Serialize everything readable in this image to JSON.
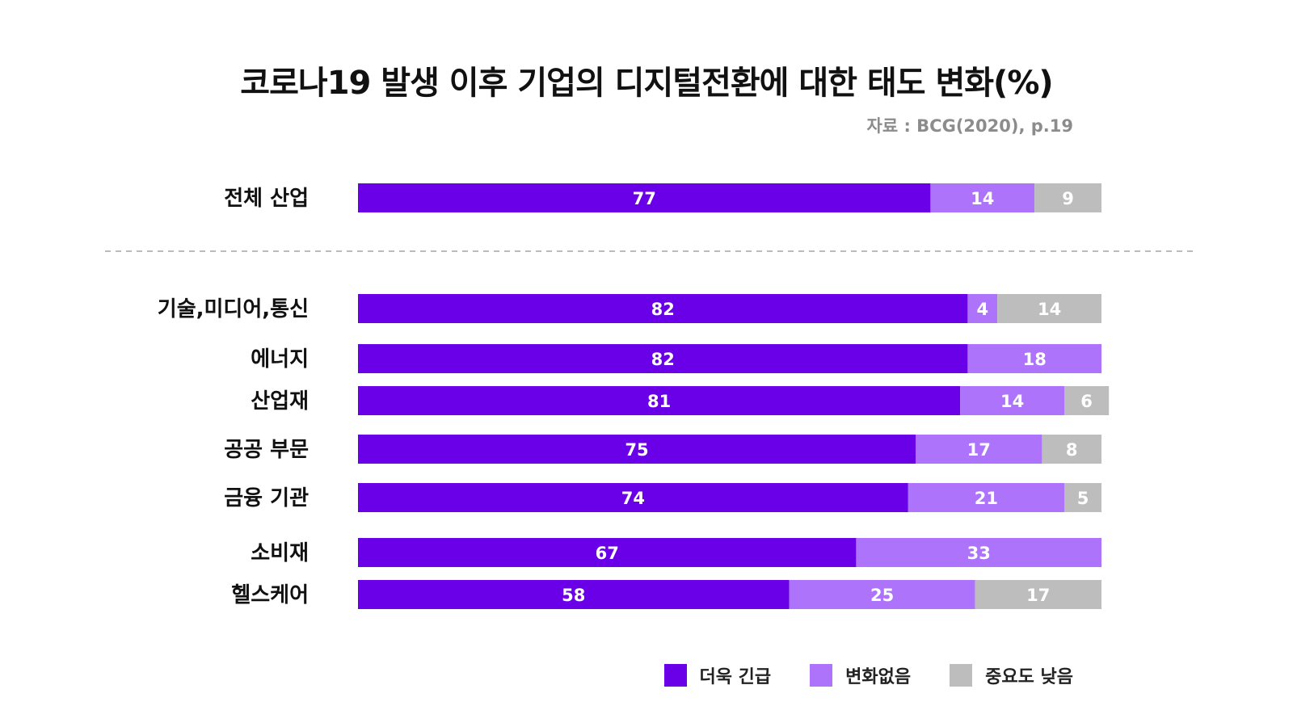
{
  "title": "코로나19 발생 이후 기업의 디지털전환에 대한 태도 변화(%)",
  "source": "자료 : BCG(2020), p.19",
  "colors": {
    "more_urgent": "#6a00e8",
    "no_change": "#ad73fb",
    "less_important": "#bdbdbd",
    "divider": "#bbbbbb"
  },
  "chart_data": {
    "type": "bar",
    "orientation": "horizontal",
    "stacked": true,
    "title": "코로나19 발생 이후 기업의 디지털전환에 대한 태도 변화(%)",
    "categories": [
      "전체 산업",
      "기술,미디어,통신",
      "에너지",
      "산업재",
      "공공 부문",
      "금융 기관",
      "소비재",
      "헬스케어"
    ],
    "series": [
      {
        "name": "더욱 긴급",
        "color": "#6a00e8",
        "values": [
          77,
          82,
          82,
          81,
          75,
          74,
          67,
          58
        ]
      },
      {
        "name": "변화없음",
        "color": "#ad73fb",
        "values": [
          14,
          4,
          18,
          14,
          17,
          21,
          33,
          25
        ]
      },
      {
        "name": "중요도 낮음",
        "color": "#bdbdbd",
        "values": [
          9,
          14,
          0,
          6,
          8,
          5,
          0,
          17
        ]
      }
    ],
    "xlim": [
      0,
      100
    ],
    "grid": false,
    "legend_position": "bottom-right"
  }
}
